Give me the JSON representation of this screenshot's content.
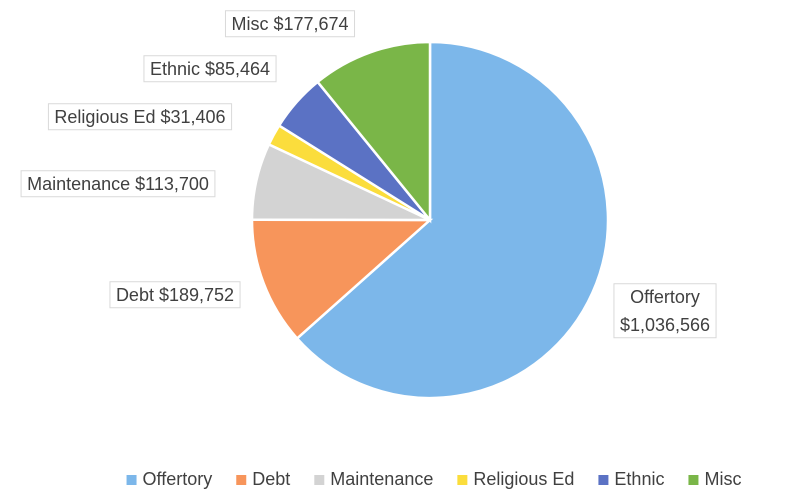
{
  "chart_data": {
    "type": "pie",
    "categories": [
      "Offertory",
      "Debt",
      "Maintenance",
      "Religious Ed",
      "Ethnic",
      "Misc"
    ],
    "values": [
      1036566,
      189752,
      113700,
      31406,
      85464,
      177674
    ],
    "value_labels": [
      "$1,036,566",
      "$189,752",
      "$113,700",
      "$31,406",
      "$85,464",
      "$177,674"
    ],
    "colors": [
      "#7cb7ea",
      "#f7955b",
      "#d3d3d3",
      "#fbdd3c",
      "#5b72c4",
      "#7ab648"
    ],
    "legend": "bottom"
  }
}
